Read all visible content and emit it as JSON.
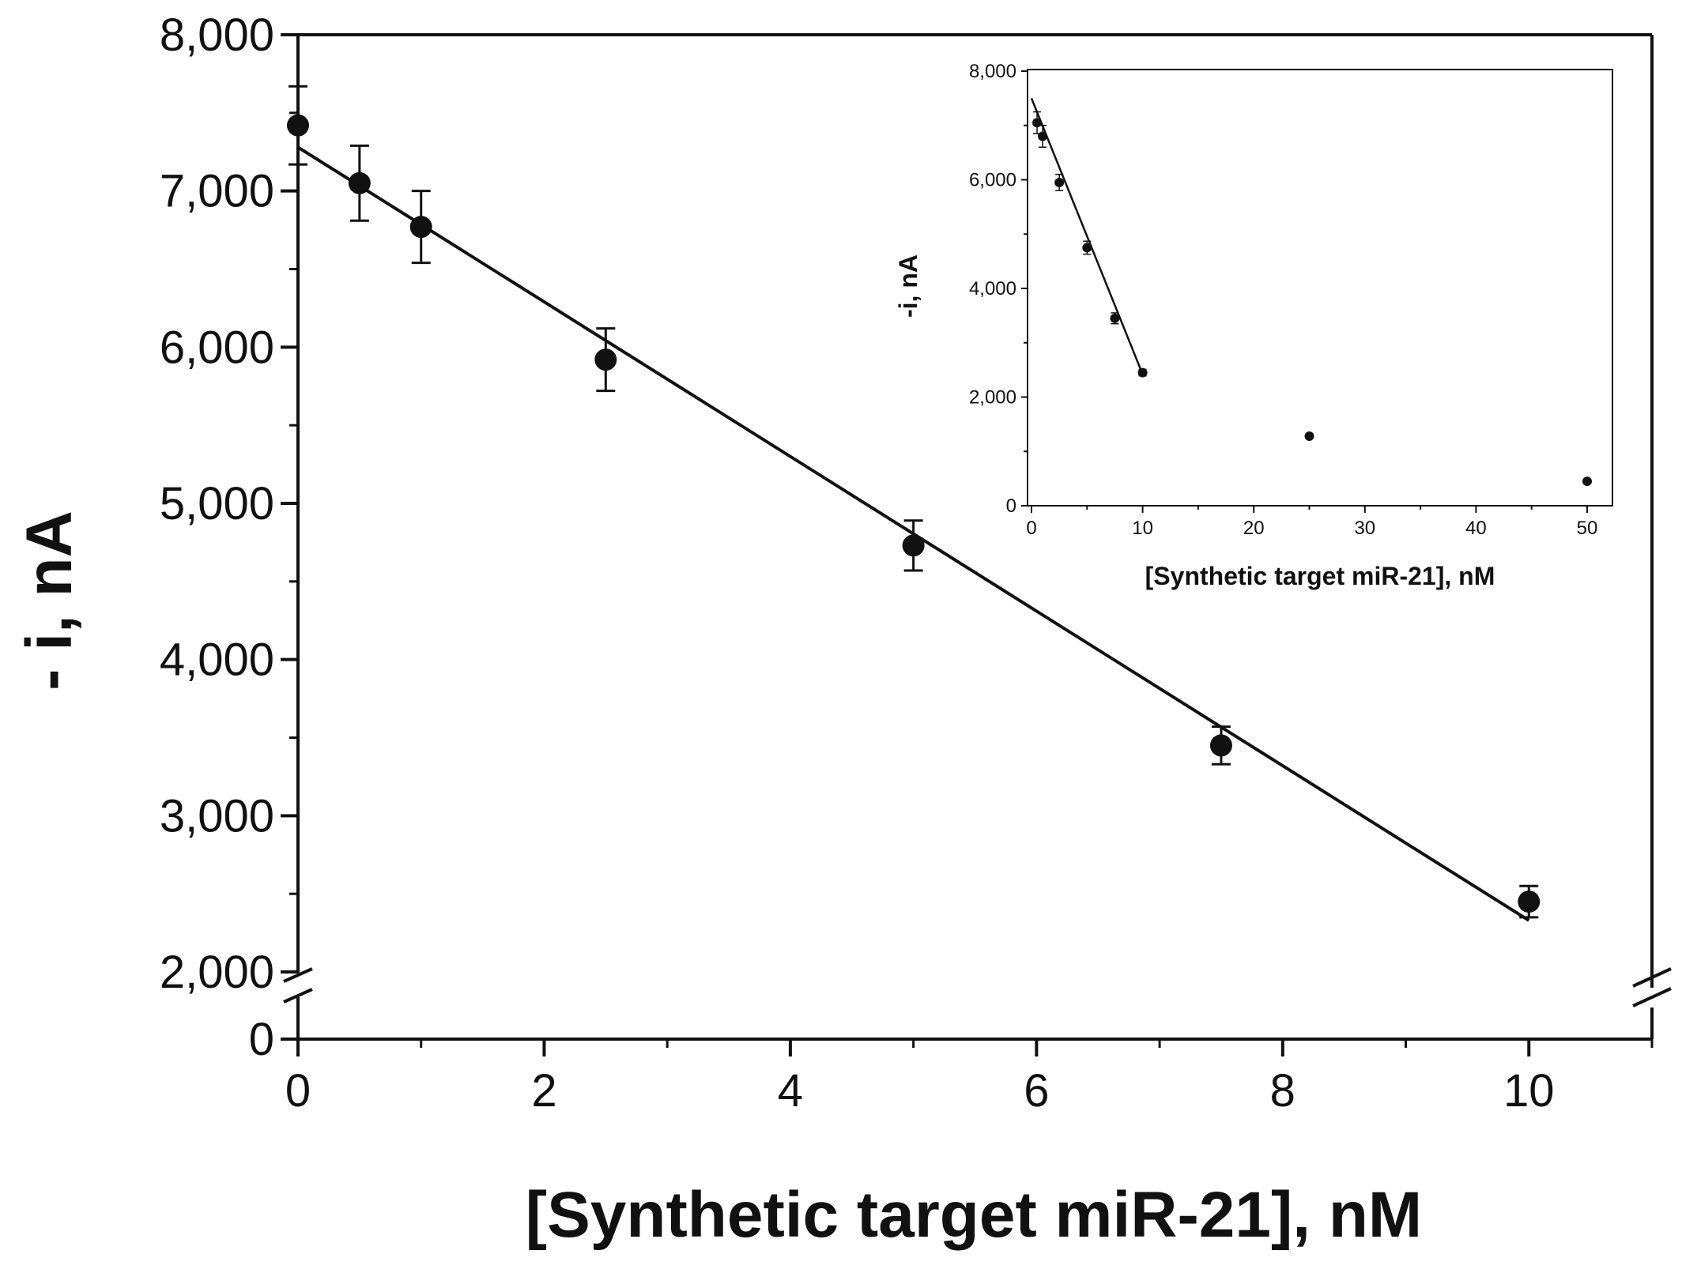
{
  "chart_data": [
    {
      "type": "scatter",
      "xlabel": "[Synthetic target miR-21], nM",
      "ylabel": "- i, nA",
      "xlim": [
        0,
        11
      ],
      "ylim": [
        2000,
        8000
      ],
      "y_axis_break": {
        "below": 2000,
        "also_shows": 0
      },
      "x_ticks": [
        "0",
        "2",
        "4",
        "6",
        "8",
        "10"
      ],
      "y_ticks": [
        "0",
        "2,000",
        "3,000",
        "4,000",
        "5,000",
        "6,000",
        "7,000",
        "8,000"
      ],
      "grid": false,
      "series": [
        {
          "x": [
            0,
            0.5,
            1,
            2.5,
            5,
            7.5,
            10
          ],
          "y": [
            7420,
            7050,
            6770,
            5920,
            4730,
            3450,
            2450
          ],
          "error": [
            250,
            240,
            230,
            200,
            160,
            120,
            100
          ]
        }
      ],
      "fit_line": {
        "x": [
          0,
          10
        ],
        "y": [
          7280,
          2330
        ]
      }
    },
    {
      "type": "scatter",
      "inset": true,
      "xlabel": "[Synthetic target miR-21], nM",
      "ylabel": "-i, nA",
      "xlim": [
        0,
        52
      ],
      "ylim": [
        0,
        8000
      ],
      "x_ticks": [
        "0",
        "10",
        "20",
        "30",
        "40",
        "50"
      ],
      "y_ticks": [
        "0",
        "2,000",
        "4,000",
        "6,000",
        "8,000"
      ],
      "grid": false,
      "series": [
        {
          "x": [
            0.5,
            1,
            2.5,
            5,
            7.5,
            10,
            25,
            50
          ],
          "y": [
            7050,
            6800,
            5950,
            4750,
            3450,
            2450,
            1280,
            450
          ],
          "error": [
            200,
            200,
            150,
            120,
            100,
            60,
            0,
            0
          ]
        }
      ],
      "fit_line": {
        "x": [
          0,
          10
        ],
        "y": [
          7500,
          2420
        ]
      }
    }
  ]
}
